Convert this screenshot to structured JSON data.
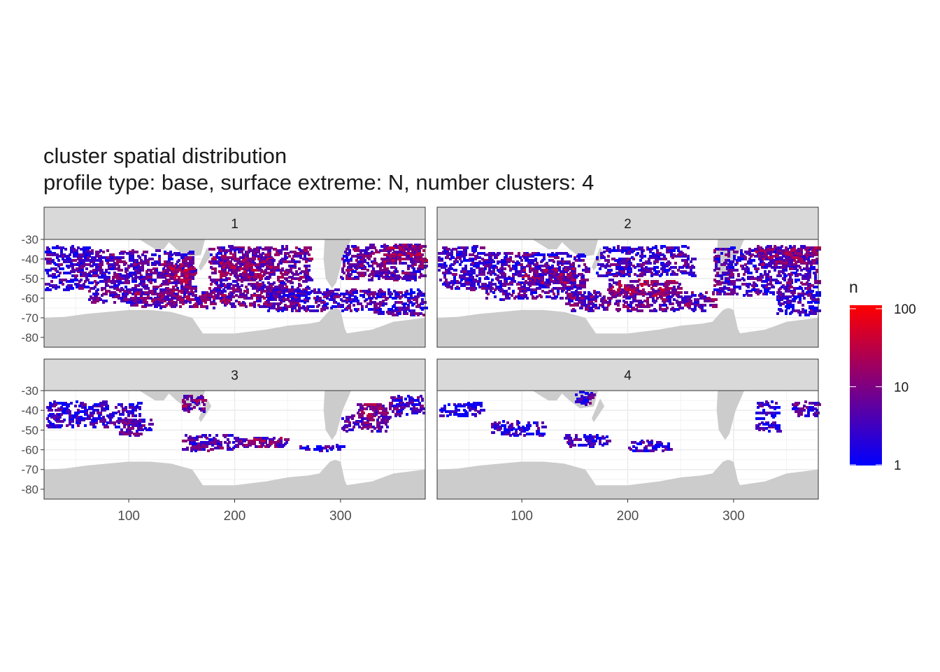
{
  "chart_data": {
    "type": "heatmap",
    "title": "cluster spatial distribution",
    "subtitle": "profile type: base, surface extreme: N, number clusters: 4",
    "xlabel": "",
    "ylabel": "",
    "x_ticks": [
      100,
      200,
      300
    ],
    "y_ticks": [
      -30,
      -40,
      -50,
      -60,
      -70,
      -80
    ],
    "xlim": [
      20,
      380
    ],
    "ylim": [
      -85,
      -30
    ],
    "grid": true,
    "legend": {
      "title": "n",
      "position": "right",
      "scale": "log10",
      "range": [
        1,
        100
      ],
      "ticks": [
        "100",
        "10",
        "1"
      ],
      "colors": {
        "low": "#0000ff",
        "high": "#ff0000"
      }
    },
    "land_color": "#cccccc",
    "facets": [
      {
        "label": "1",
        "bands": [
          {
            "x0": 20,
            "x1": 60,
            "y0": -55,
            "y1": -33,
            "n": 4
          },
          {
            "x0": 60,
            "x1": 160,
            "y0": -62,
            "y1": -35,
            "n": 6
          },
          {
            "x0": 130,
            "x1": 160,
            "y0": -52,
            "y1": -42,
            "n": 18
          },
          {
            "x0": 100,
            "x1": 260,
            "y0": -64,
            "y1": -55,
            "n": 10
          },
          {
            "x0": 175,
            "x1": 270,
            "y0": -56,
            "y1": -33,
            "n": 8
          },
          {
            "x0": 185,
            "x1": 235,
            "y0": -50,
            "y1": -38,
            "n": 14
          },
          {
            "x0": 230,
            "x1": 340,
            "y0": -66,
            "y1": -55,
            "n": 5
          },
          {
            "x0": 300,
            "x1": 378,
            "y0": -50,
            "y1": -32,
            "n": 6
          },
          {
            "x0": 340,
            "x1": 378,
            "y0": -42,
            "y1": -32,
            "n": 16
          },
          {
            "x0": 330,
            "x1": 378,
            "y0": -68,
            "y1": -55,
            "n": 4
          }
        ]
      },
      {
        "label": "2",
        "bands": [
          {
            "x0": 20,
            "x1": 60,
            "y0": -55,
            "y1": -33,
            "n": 4
          },
          {
            "x0": 60,
            "x1": 160,
            "y0": -60,
            "y1": -36,
            "n": 5
          },
          {
            "x0": 100,
            "x1": 150,
            "y0": -52,
            "y1": -44,
            "n": 12
          },
          {
            "x0": 140,
            "x1": 280,
            "y0": -66,
            "y1": -56,
            "n": 8
          },
          {
            "x0": 180,
            "x1": 250,
            "y0": -58,
            "y1": -50,
            "n": 16
          },
          {
            "x0": 170,
            "x1": 260,
            "y0": -48,
            "y1": -33,
            "n": 4
          },
          {
            "x0": 280,
            "x1": 378,
            "y0": -58,
            "y1": -33,
            "n": 5
          },
          {
            "x0": 320,
            "x1": 378,
            "y0": -42,
            "y1": -33,
            "n": 12
          },
          {
            "x0": 340,
            "x1": 378,
            "y0": -68,
            "y1": -58,
            "n": 3
          }
        ]
      },
      {
        "label": "3",
        "bands": [
          {
            "x0": 20,
            "x1": 110,
            "y0": -48,
            "y1": -35,
            "n": 3
          },
          {
            "x0": 90,
            "x1": 120,
            "y0": -52,
            "y1": -44,
            "n": 5
          },
          {
            "x0": 150,
            "x1": 200,
            "y0": -60,
            "y1": -52,
            "n": 6
          },
          {
            "x0": 200,
            "x1": 250,
            "y0": -58,
            "y1": -53,
            "n": 10
          },
          {
            "x0": 260,
            "x1": 300,
            "y0": -60,
            "y1": -57,
            "n": 3
          },
          {
            "x0": 150,
            "x1": 170,
            "y0": -40,
            "y1": -32,
            "n": 10
          },
          {
            "x0": 300,
            "x1": 345,
            "y0": -50,
            "y1": -42,
            "n": 6
          },
          {
            "x0": 315,
            "x1": 340,
            "y0": -42,
            "y1": -36,
            "n": 14
          },
          {
            "x0": 345,
            "x1": 378,
            "y0": -42,
            "y1": -32,
            "n": 5
          }
        ]
      },
      {
        "label": "4",
        "bands": [
          {
            "x0": 20,
            "x1": 60,
            "y0": -42,
            "y1": -35,
            "n": 2
          },
          {
            "x0": 70,
            "x1": 120,
            "y0": -52,
            "y1": -45,
            "n": 3
          },
          {
            "x0": 150,
            "x1": 165,
            "y0": -37,
            "y1": -30,
            "n": 4
          },
          {
            "x0": 140,
            "x1": 180,
            "y0": -58,
            "y1": -52,
            "n": 3
          },
          {
            "x0": 200,
            "x1": 240,
            "y0": -60,
            "y1": -55,
            "n": 3
          },
          {
            "x0": 320,
            "x1": 340,
            "y0": -50,
            "y1": -35,
            "n": 3
          },
          {
            "x0": 355,
            "x1": 378,
            "y0": -42,
            "y1": -35,
            "n": 4
          }
        ]
      }
    ]
  }
}
